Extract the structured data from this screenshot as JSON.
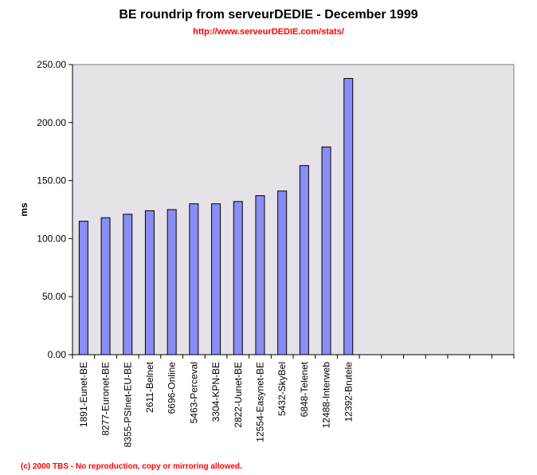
{
  "title": "BE roundrip from serveurDEDIE - December 1999",
  "subtitle": "http://www.serveurDEDIE.com/stats/",
  "footer": "(c) 2000 TBS - No reproduction, copy or mirroring allowed.",
  "colors": {
    "plot_bg": "#e5e3e8",
    "bar_fill": "#8c8cf5",
    "bar_stroke": "#000000",
    "title": "#000000",
    "subtitle": "#ff0000",
    "footer": "#ff0000"
  },
  "chart_data": {
    "type": "bar",
    "title": "BE roundrip from serveurDEDIE - December 1999",
    "subtitle": "http://www.serveurDEDIE.com/stats/",
    "xlabel": "",
    "ylabel": "ms",
    "ylim": [
      0,
      250
    ],
    "yticks": [
      "0.00",
      "50.00",
      "100.00",
      "150.00",
      "200.00",
      "250.00"
    ],
    "grid": false,
    "empty_slots": 7,
    "categories": [
      "1891-Eunet-BE",
      "8277-Euronet-BE",
      "8355-PSInet-EU-BE",
      "2611-Belnet",
      "6696-Online",
      "5463-Perceval",
      "3304-KPN-BE",
      "2822-Uunet-BE",
      "12554-Easynet-BE",
      "5432-SkyBel",
      "6848-Telenet",
      "12488-Interweb",
      "12392-Brutele"
    ],
    "values": [
      115,
      118,
      121,
      124,
      125,
      130,
      130,
      132,
      137,
      141,
      163,
      179,
      238
    ]
  }
}
